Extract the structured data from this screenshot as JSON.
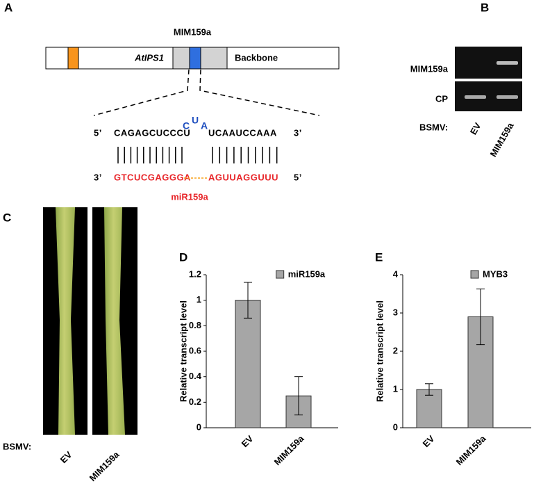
{
  "panel_labels": [
    "A",
    "B",
    "C",
    "D",
    "E"
  ],
  "construct": {
    "title": "MIM159a",
    "gene": "AtIPS1",
    "backbone": "Backbone"
  },
  "target": {
    "five_prime": "5’",
    "left": "CAGAGCUCCCU",
    "bulge": [
      "C",
      "U",
      "A"
    ],
    "right": "UCAAUCCAAA",
    "three_prime": "3’"
  },
  "mirna": {
    "three_prime": "3’",
    "left": "GTCUCGAGGGA",
    "right": "AGUUAGGUUU",
    "five_prime": "5’",
    "name": "miR159a"
  },
  "gel": {
    "rows": [
      "MIM159a",
      "CP"
    ],
    "treatment_label": "BSMV:",
    "lanes": [
      "EV",
      "MIM159a"
    ]
  },
  "leaves": {
    "treatment_label": "BSMV:",
    "lanes": [
      "EV",
      "MIM159a"
    ]
  },
  "chart_data": [
    {
      "type": "bar",
      "y_label": "Relative transcript level",
      "categories": [
        "EV",
        "MIM159a"
      ],
      "series": [
        {
          "name": "miR159a",
          "color": "#a6a6a6",
          "values": [
            1,
            0.25
          ],
          "errors": [
            0.14,
            0.15
          ]
        }
      ],
      "ylim": [
        0,
        1.2
      ],
      "yticks": [
        0,
        0.2,
        0.4,
        0.6,
        0.8,
        1,
        1.2
      ],
      "grid": false,
      "legend": "top-right"
    },
    {
      "type": "bar",
      "y_label": "Relative transcript level",
      "categories": [
        "EV",
        "MIM159a"
      ],
      "series": [
        {
          "name": "MYB3",
          "color": "#a6a6a6",
          "values": [
            1,
            2.9
          ],
          "errors": [
            0.15,
            0.73
          ]
        }
      ],
      "ylim": [
        0,
        4
      ],
      "yticks": [
        0,
        1,
        2,
        3,
        4
      ],
      "grid": false,
      "legend": "top-right"
    }
  ]
}
